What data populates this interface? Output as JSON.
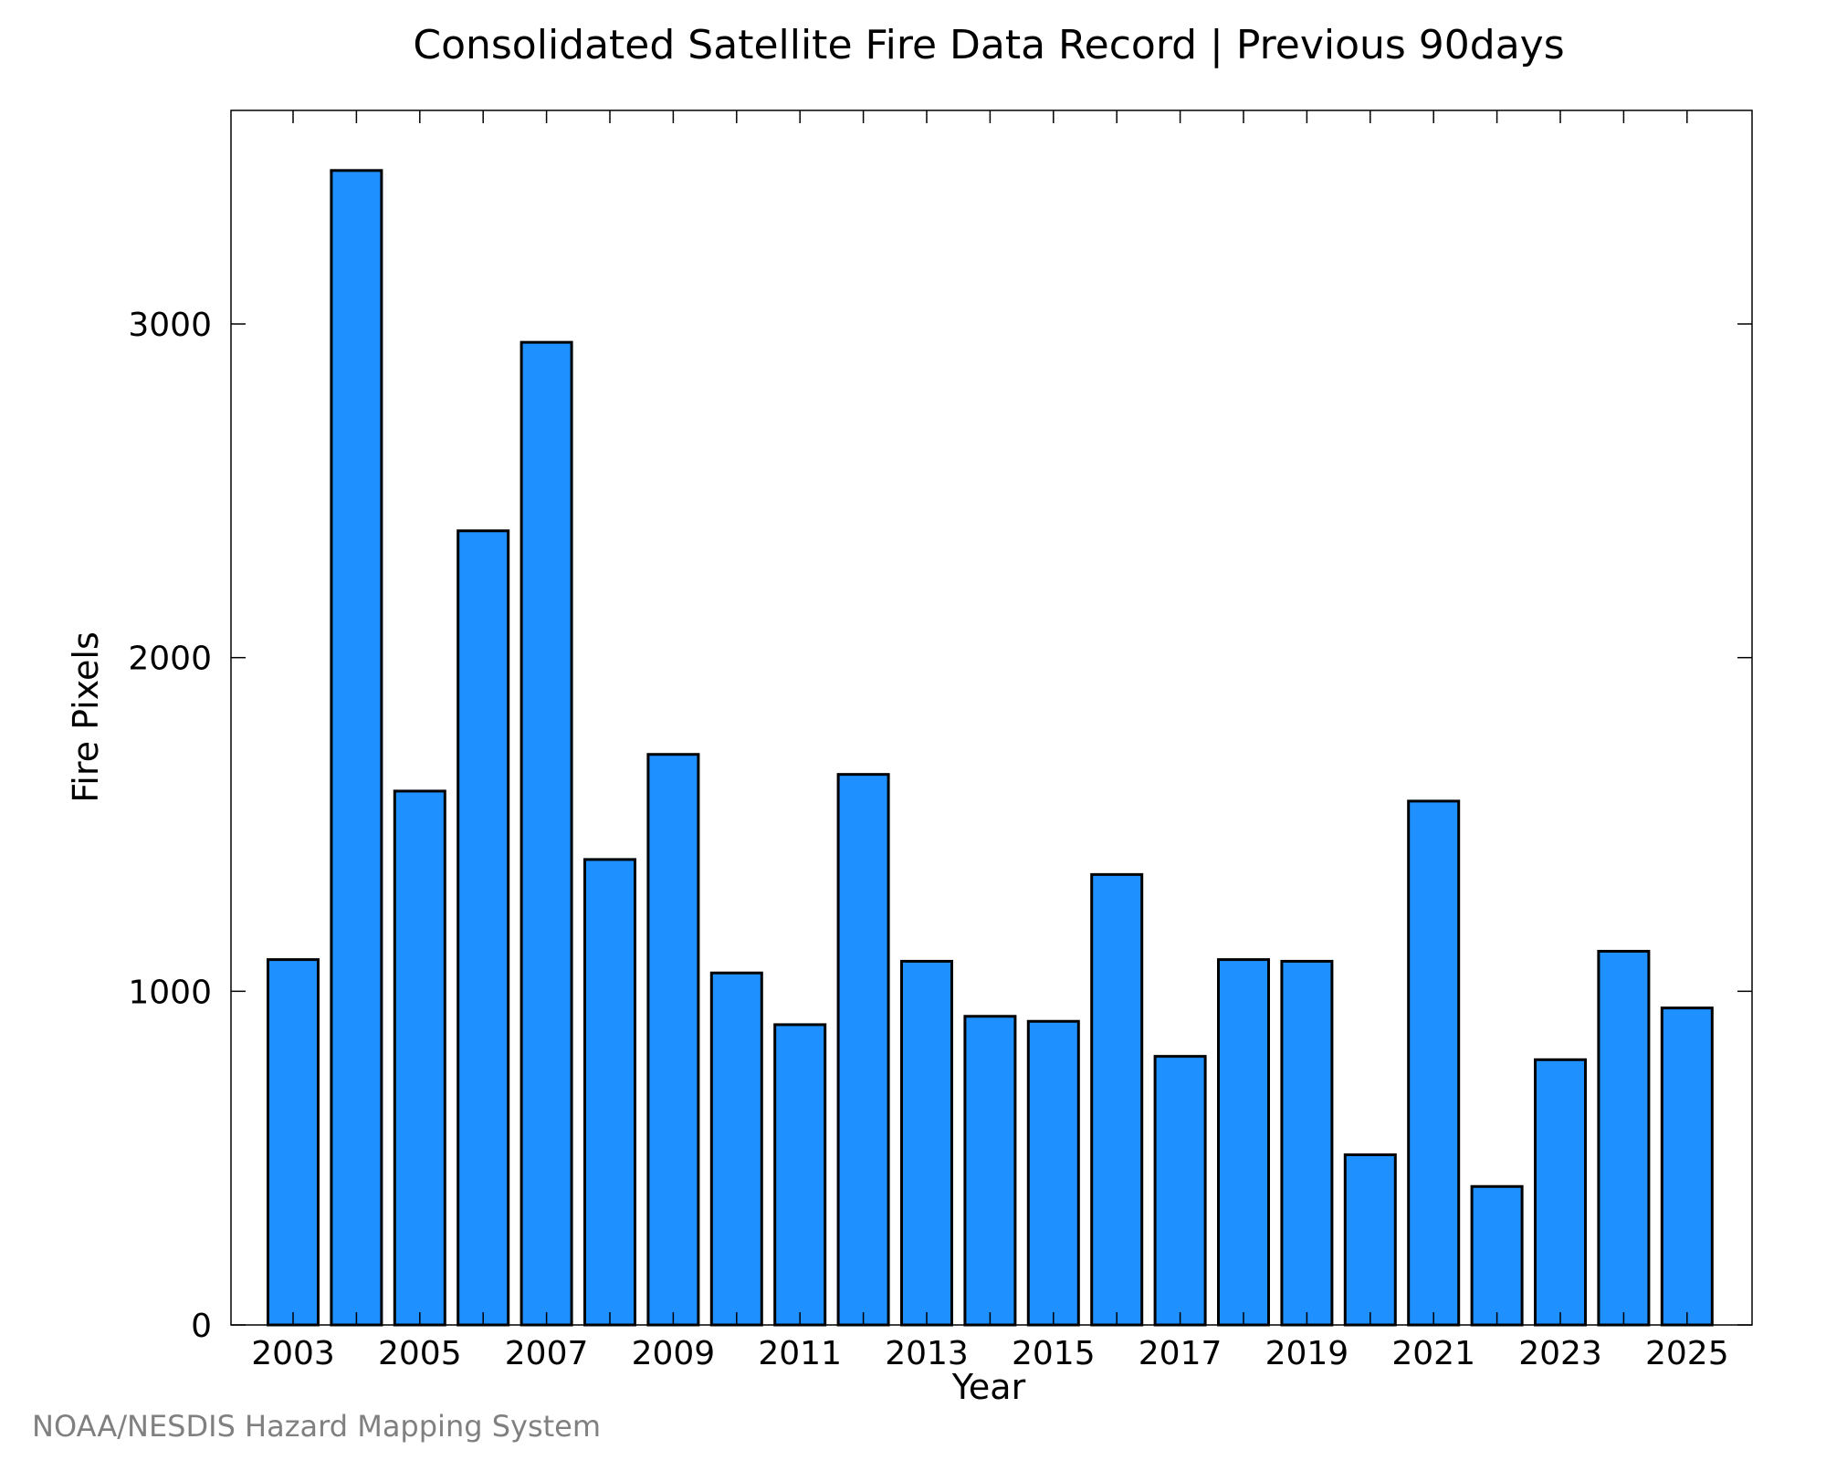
{
  "colors": {
    "bar_fill": "#1e90ff",
    "bar_stroke": "#000000",
    "axis": "#000000",
    "credit": "#808080",
    "background": "#ffffff"
  },
  "credit": "NOAA/NESDIS Hazard Mapping System",
  "chart_data": {
    "type": "bar",
    "title": "Consolidated Satellite Fire Data Record | Previous 90days",
    "xlabel": "Year",
    "ylabel": "Fire Pixels",
    "categories": [
      "2003",
      "2004",
      "2005",
      "2006",
      "2007",
      "2008",
      "2009",
      "2010",
      "2011",
      "2012",
      "2013",
      "2014",
      "2015",
      "2016",
      "2017",
      "2018",
      "2019",
      "2020",
      "2021",
      "2022",
      "2023",
      "2024",
      "2025"
    ],
    "values": [
      1095,
      3460,
      1600,
      2380,
      2945,
      1395,
      1710,
      1055,
      900,
      1650,
      1090,
      925,
      910,
      1350,
      805,
      1095,
      1090,
      510,
      1570,
      415,
      795,
      1120,
      950
    ],
    "x_tick_labels": [
      "2003",
      "2005",
      "2007",
      "2009",
      "2011",
      "2013",
      "2015",
      "2017",
      "2019",
      "2021",
      "2023",
      "2025"
    ],
    "y_ticks": [
      0,
      1000,
      2000,
      3000
    ],
    "ylim": [
      0,
      3640
    ],
    "grid": false,
    "legend": "none"
  }
}
